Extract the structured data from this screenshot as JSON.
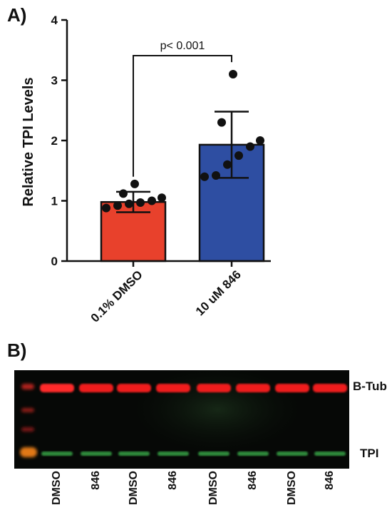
{
  "panel_a": {
    "label": "A)"
  },
  "panel_b": {
    "label": "B)"
  },
  "chart_data": {
    "type": "bar",
    "ylabel": "Relative TPI Levels",
    "ylim": [
      0,
      4
    ],
    "yticks": [
      "0",
      "1",
      "2",
      "3",
      "4"
    ],
    "categories": [
      "0.1% DMSO",
      "10 uM 846"
    ],
    "values": [
      0.98,
      1.93
    ],
    "error": [
      0.17,
      0.55
    ],
    "colors": [
      "#e8412c",
      "#2e4ea2"
    ],
    "points": [
      [
        0.88,
        0.92,
        0.95,
        0.97,
        1.0,
        1.05,
        1.12,
        1.28
      ],
      [
        1.4,
        1.42,
        1.6,
        1.75,
        1.9,
        2.0,
        2.3,
        3.1
      ]
    ],
    "annotation": "p< 0.001"
  },
  "blot": {
    "band_labels": {
      "top": "B-Tub",
      "bottom": "TPI"
    },
    "lanes": [
      "DMSO",
      "846",
      "DMSO",
      "846",
      "DMSO",
      "846",
      "DMSO",
      "846"
    ]
  }
}
